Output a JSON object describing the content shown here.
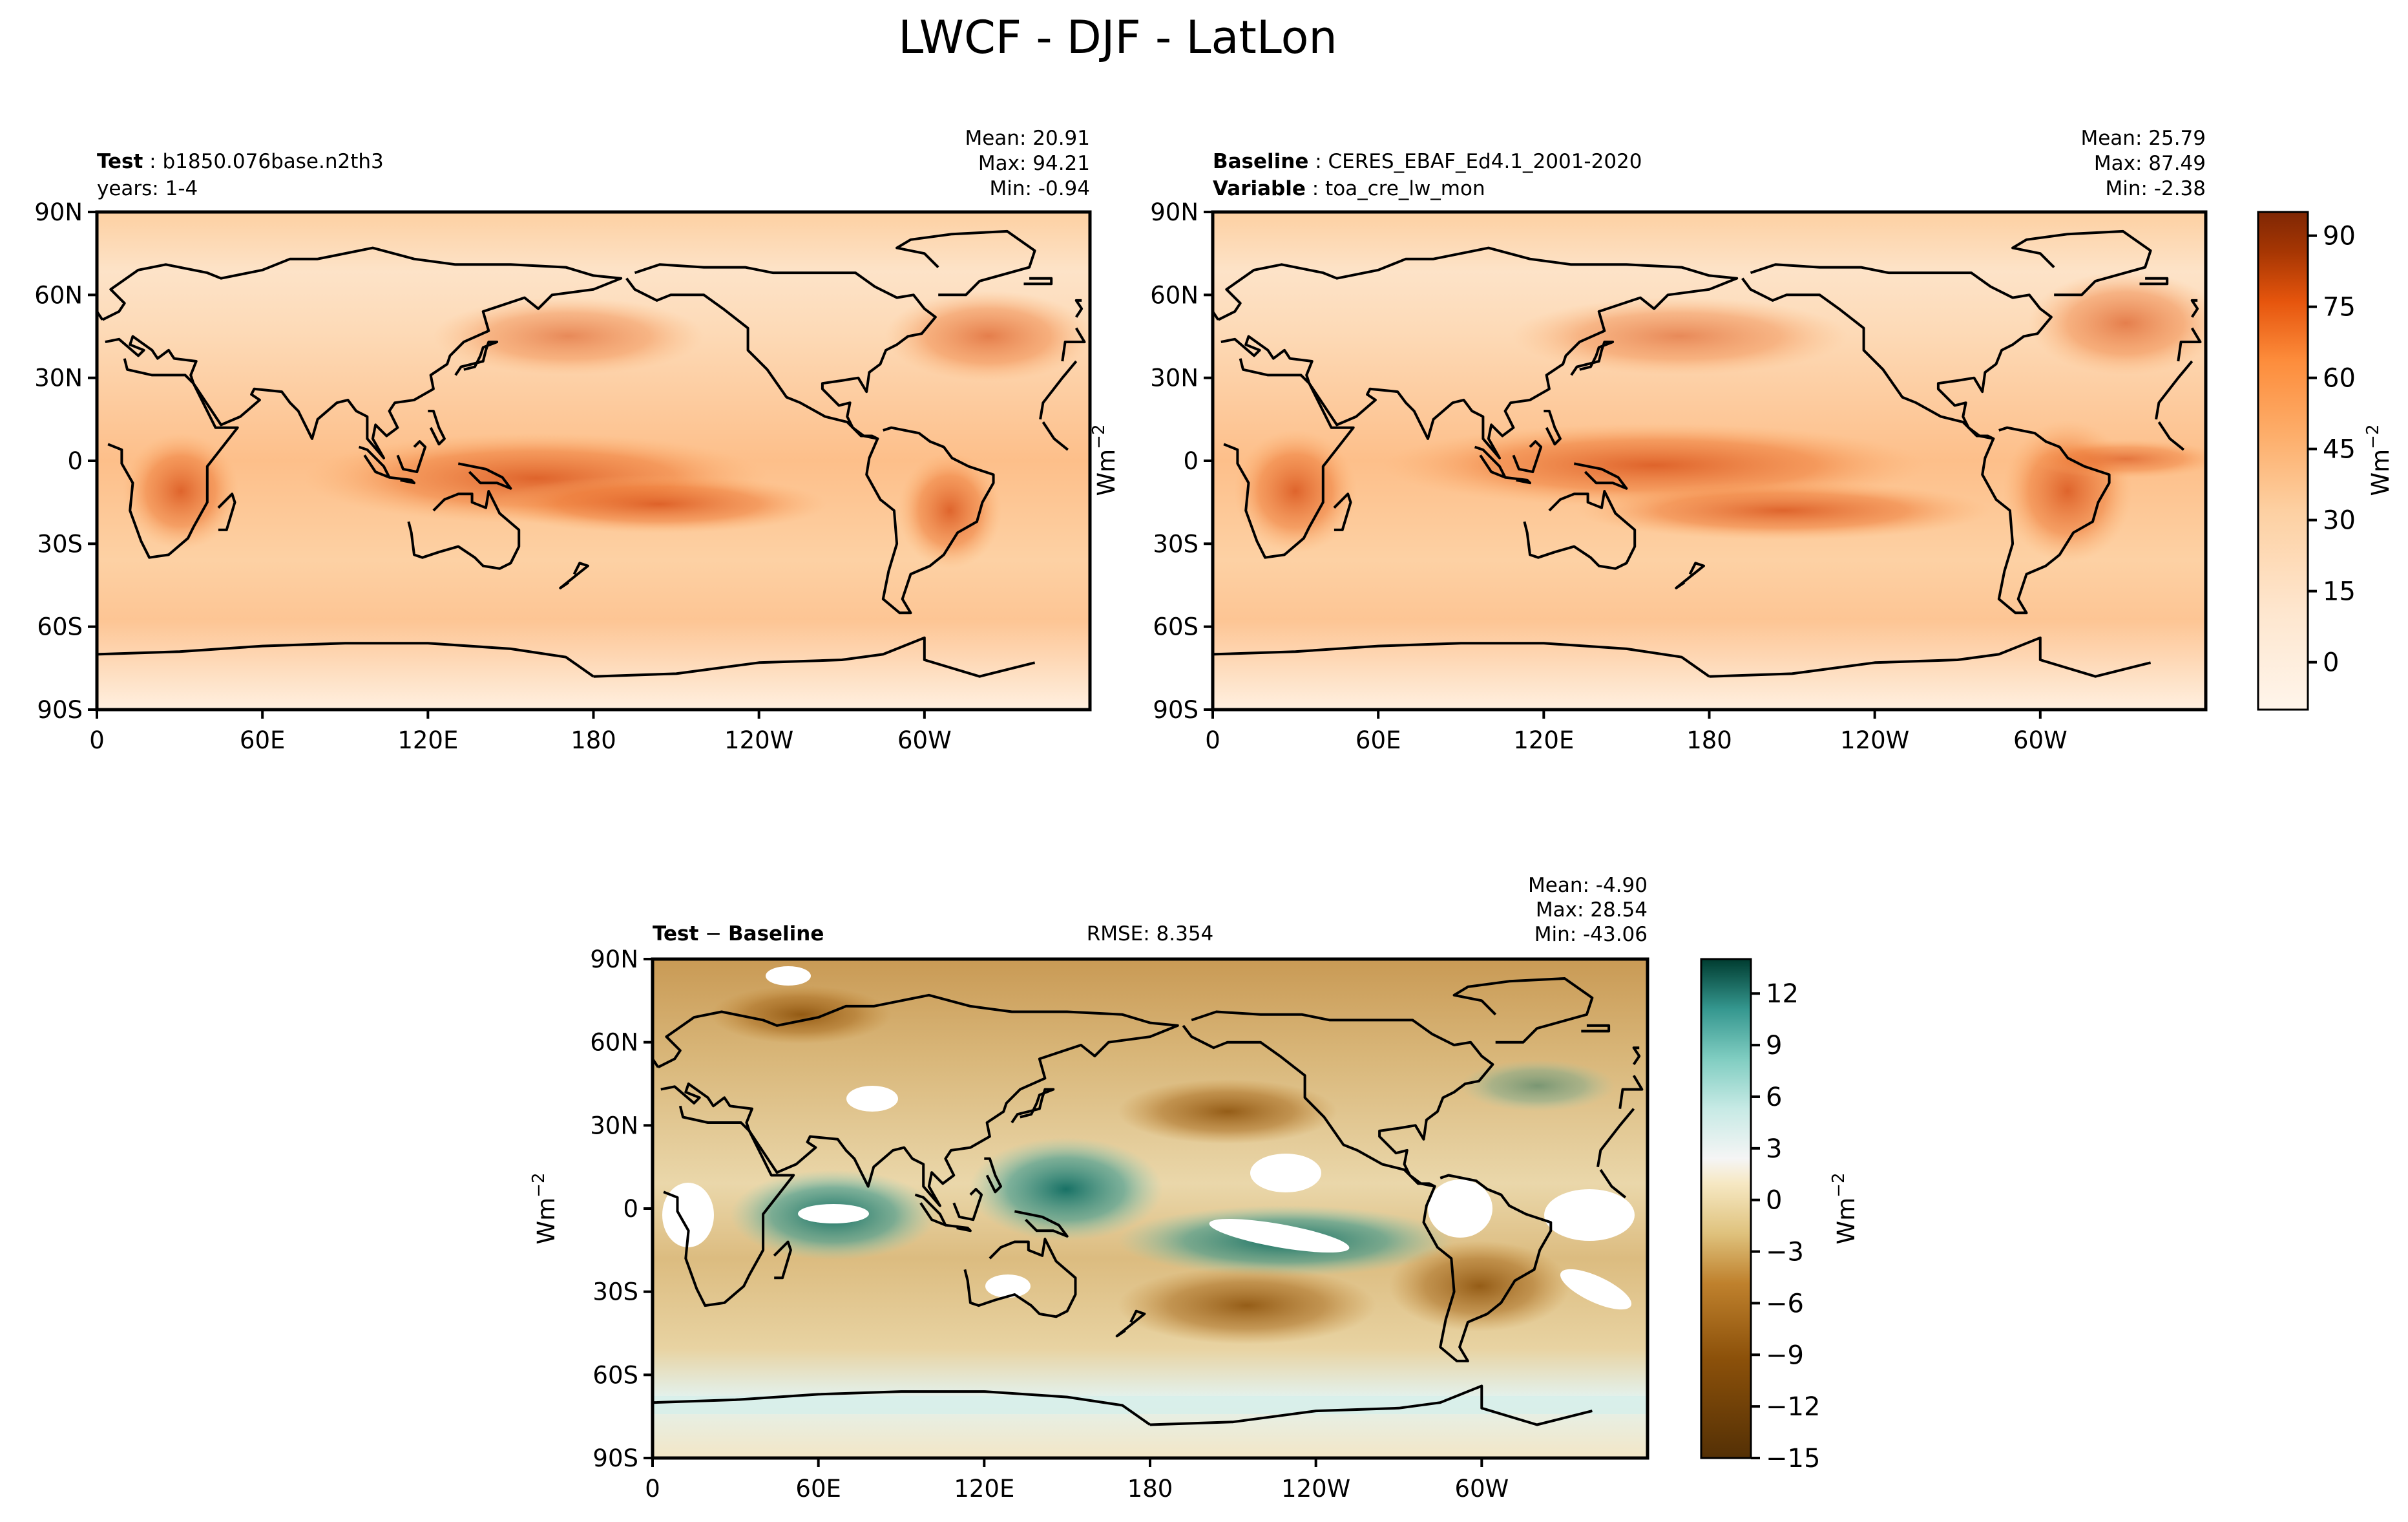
{
  "chart_data": {
    "type": "heatmap",
    "title": "LWCF - DJF - LatLon",
    "panels": [
      {
        "id": "test",
        "label_bold": "Test",
        "label_text": "b1850.076base.n2th3",
        "sub_label_text": "years: 1-4",
        "stats": [
          "Mean: 20.91",
          "Max: 94.21",
          "Min: -0.94"
        ],
        "x_ticks": [
          "0",
          "60E",
          "120E",
          "180",
          "120W",
          "60W"
        ],
        "y_ticks": [
          "90N",
          "60N",
          "30N",
          "0",
          "30S",
          "60S",
          "90S"
        ],
        "colormap": "oranges",
        "xlim": [
          0,
          360
        ],
        "ylim": [
          -90,
          90
        ]
      },
      {
        "id": "baseline",
        "label_bold": "Baseline",
        "label_text": "CERES_EBAF_Ed4.1_2001-2020",
        "sub_label_bold": "Variable",
        "sub_label_text": "toa_cre_lw_mon",
        "stats": [
          "Mean: 25.79",
          "Max: 87.49",
          "Min: -2.38"
        ],
        "x_ticks": [
          "0",
          "60E",
          "120E",
          "180",
          "120W",
          "60W"
        ],
        "y_ticks": [
          "90N",
          "60N",
          "30N",
          "0",
          "30S",
          "60S",
          "90S"
        ],
        "colormap": "oranges",
        "xlim": [
          0,
          360
        ],
        "ylim": [
          -90,
          90
        ]
      },
      {
        "id": "diff",
        "label_bold_a": "Test",
        "label_sep": "−",
        "label_bold_b": "Baseline",
        "rmse": "RMSE: 8.354",
        "stats": [
          "Mean: -4.90",
          "Max: 28.54",
          "Min: -43.06"
        ],
        "x_ticks": [
          "0",
          "60E",
          "120E",
          "180",
          "120W",
          "60W"
        ],
        "y_ticks": [
          "90N",
          "60N",
          "30N",
          "0",
          "30S",
          "60S",
          "90S"
        ],
        "colormap": "brown-white-teal",
        "xlim": [
          0,
          360
        ],
        "ylim": [
          -90,
          90
        ]
      }
    ],
    "colorbars": [
      {
        "id": "top",
        "label": "Wm",
        "label_exp": "−2",
        "ticks": [
          "90",
          "75",
          "60",
          "45",
          "30",
          "15",
          "0"
        ],
        "range": [
          -10,
          95
        ]
      },
      {
        "id": "bottom",
        "label": "Wm",
        "label_exp": "−2",
        "ticks": [
          "12",
          "9",
          "6",
          "3",
          "0",
          "−3",
          "−6",
          "−9",
          "−12",
          "−15"
        ],
        "range": [
          -15,
          14
        ]
      }
    ],
    "axis_unit_label": {
      "text": "Wm",
      "exp": "−2"
    },
    "colors": {
      "orange_low": "#fff5eb",
      "orange_mid": "#fdae6b",
      "orange_high": "#7f2704",
      "diff_neg": "#543005",
      "diff_zero": "#f5f5f5",
      "diff_pos": "#003c30"
    }
  }
}
